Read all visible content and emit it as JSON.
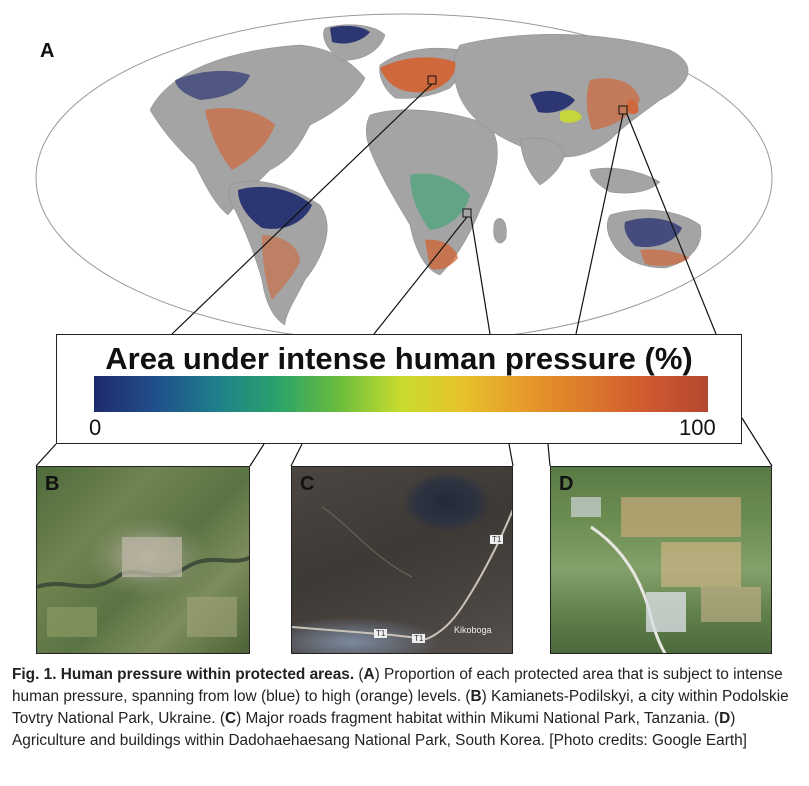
{
  "panels": {
    "a": "A",
    "b": "B",
    "c": "C",
    "d": "D"
  },
  "legend": {
    "title": "Area under intense human pressure (%)",
    "min_label": "0",
    "max_label": "100",
    "low_color": "#1f2a6e",
    "high_color": "#b4472f"
  },
  "photo_c": {
    "road_label": "T1",
    "place_label": "Kikoboga"
  },
  "caption": {
    "fig_label": "Fig. 1. Human pressure within protected areas.",
    "a_open": " (",
    "a_letter": "A",
    "a_text": ") Proportion of each protected area that is subject to intense human pressure, spanning from low (blue) to high (orange) levels. (",
    "b_letter": "B",
    "b_text": ") Kamianets-Podilskyi, a city within Podolskie Tovtry National Park, Ukraine. (",
    "c_letter": "C",
    "c_text": ") Major roads fragment habitat within Mikumi National Park, Tanzania. (",
    "d_letter": "D",
    "d_text": ") Agriculture and buildings within Dadohaehaesang National Park, South Korea. [Photo credits: Google Earth]"
  },
  "colors": {
    "land": "#a4a4a4",
    "ocean": "#ffffff",
    "high_pressure": "#d4612f",
    "low_pressure": "#1f2a6e",
    "mid_pressure": "#2aa36a"
  }
}
